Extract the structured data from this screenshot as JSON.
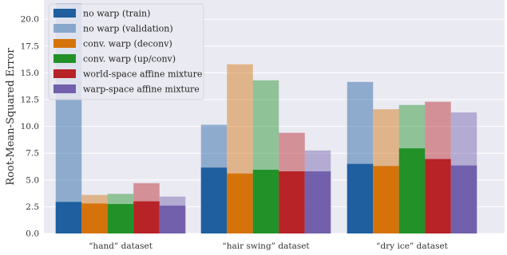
{
  "chart_data": {
    "type": "bar",
    "ylabel": "Root-Mean-Squared Error",
    "ylim": [
      0,
      21.8
    ],
    "yticks": [
      "0.0",
      "2.5",
      "5.0",
      "7.5",
      "10.0",
      "12.5",
      "15.0",
      "17.5",
      "20.0"
    ],
    "ytick_values": [
      0,
      2.5,
      5,
      7.5,
      10,
      12.5,
      15,
      17.5,
      20
    ],
    "categories": [
      "“hand” dataset",
      "“hair swing” dataset",
      "“dry ice” dataset"
    ],
    "grid": true,
    "legend_position": "top-left",
    "legend": [
      {
        "name": "no warp (train)",
        "color": "#1f5fa0",
        "alpha": 1.0
      },
      {
        "name": "no warp (validation)",
        "color": "#1f5fa0",
        "alpha": 0.45
      },
      {
        "name": "conv. warp (deconv)",
        "color": "#d5730a",
        "alpha": 1.0
      },
      {
        "name": "conv. warp (up/conv)",
        "color": "#229228",
        "alpha": 1.0
      },
      {
        "name": "world-space affine mixture",
        "color": "#b72327",
        "alpha": 1.0
      },
      {
        "name": "warp-space affine mixture",
        "color": "#7360ad",
        "alpha": 1.0
      }
    ],
    "methods": [
      {
        "color": "#1f5fa0",
        "train": [
          2.95,
          6.15,
          6.5
        ],
        "validation": [
          21.5,
          10.15,
          14.15
        ]
      },
      {
        "color": "#d5730a",
        "train": [
          2.8,
          5.6,
          6.3
        ],
        "validation": [
          3.6,
          15.8,
          11.6
        ]
      },
      {
        "color": "#229228",
        "train": [
          2.75,
          5.95,
          7.95
        ],
        "validation": [
          3.7,
          14.3,
          12.0
        ]
      },
      {
        "color": "#b72327",
        "train": [
          3.0,
          5.8,
          6.95
        ],
        "validation": [
          4.7,
          9.4,
          12.3
        ]
      },
      {
        "color": "#7360ad",
        "train": [
          2.6,
          5.8,
          6.35
        ],
        "validation": [
          3.45,
          7.75,
          11.3
        ]
      }
    ]
  }
}
